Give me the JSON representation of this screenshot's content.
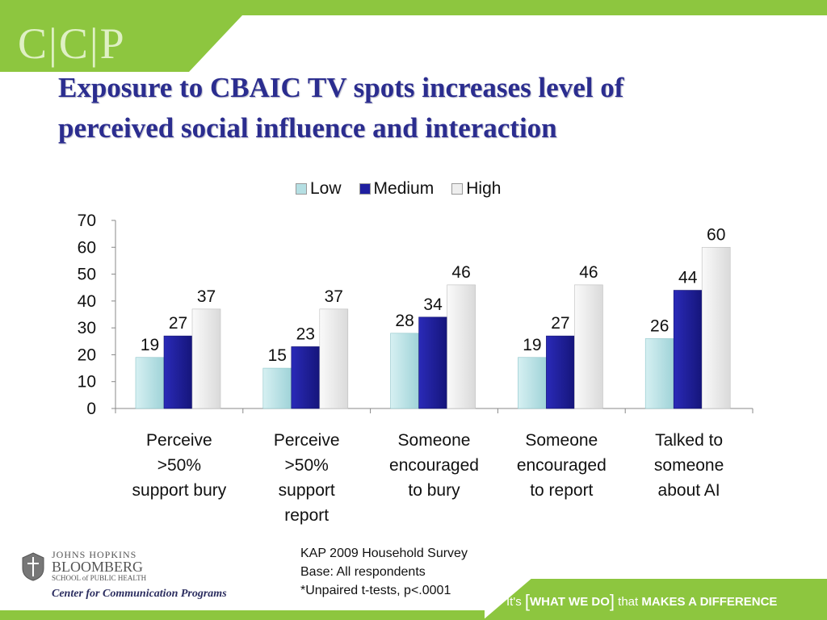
{
  "brand": "C|C|P",
  "title_line1": "Exposure to CBAIC TV spots increases level of",
  "title_line2": "perceived social influence and interaction",
  "colors": {
    "low": "#b5dfe3",
    "medium": "#1f1fa0",
    "high": "#eeeeee",
    "accent": "#8dc63f",
    "title": "#2b2d8f"
  },
  "chart_data": {
    "type": "bar",
    "categories": [
      [
        "Perceive",
        ">50%",
        "support bury"
      ],
      [
        "Perceive",
        ">50%",
        "support",
        "report"
      ],
      [
        "Someone",
        "encouraged",
        "to bury"
      ],
      [
        "Someone",
        "encouraged",
        "to report"
      ],
      [
        "Talked to",
        "someone",
        "about AI"
      ]
    ],
    "series": [
      {
        "name": "Low",
        "values": [
          19,
          15,
          28,
          19,
          26
        ]
      },
      {
        "name": "Medium",
        "values": [
          27,
          23,
          34,
          27,
          44
        ]
      },
      {
        "name": "High",
        "values": [
          37,
          37,
          46,
          46,
          60
        ]
      }
    ],
    "ylim": [
      0,
      70
    ],
    "yticks": [
      0,
      10,
      20,
      30,
      40,
      50,
      60,
      70
    ],
    "legend_position": "top",
    "grid": false
  },
  "note_lines": [
    "KAP 2009 Household Survey",
    "Base:  All respondents",
    "*Unpaired t-tests, p<.0001"
  ],
  "footer": {
    "jh": "JOHNS HOPKINS",
    "bloomberg": "BLOOMBERG",
    "school": "SCHOOL of PUBLIC HEALTH",
    "center": "Center for Communication Programs",
    "tagline_its": "It's",
    "tagline_what": "WHAT WE DO",
    "tagline_that": "that",
    "tagline_makes": "MAKES A DIFFERENCE"
  }
}
